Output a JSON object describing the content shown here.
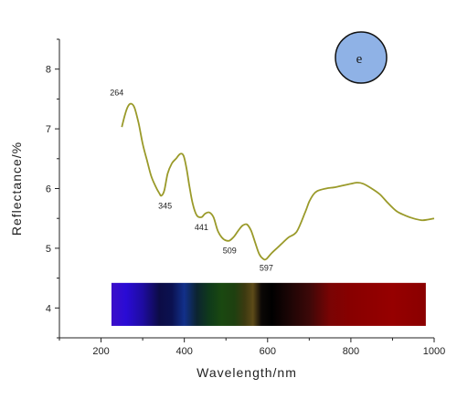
{
  "chart_data": {
    "type": "line",
    "title": "",
    "xlabel": "Wavelength/nm",
    "ylabel": "Reflectance/%",
    "xlim": [
      100,
      1000
    ],
    "ylim": [
      3.5,
      8.5
    ],
    "x_ticks": [
      200,
      400,
      600,
      800,
      1000
    ],
    "y_ticks": [
      4,
      5,
      6,
      7,
      8
    ],
    "grid": false,
    "line_color": "#9a9a2a",
    "series": [
      {
        "x": [
          250,
          258,
          265,
          272,
          280,
          290,
          300,
          310,
          320,
          330,
          340,
          345,
          352,
          360,
          370,
          380,
          390,
          398,
          405,
          412,
          420,
          430,
          441,
          450,
          460,
          470,
          480,
          490,
          500,
          509,
          520,
          530,
          540,
          550,
          560,
          570,
          580,
          590,
          597,
          610,
          630,
          650,
          670,
          690,
          700,
          710,
          720,
          740,
          760,
          780,
          800,
          815,
          830,
          850,
          870,
          890,
          910,
          930,
          950,
          970,
          985,
          1000
        ],
        "y": [
          7.03,
          7.25,
          7.38,
          7.42,
          7.36,
          7.1,
          6.75,
          6.48,
          6.22,
          6.05,
          5.92,
          5.88,
          5.97,
          6.25,
          6.42,
          6.5,
          6.58,
          6.55,
          6.35,
          6.05,
          5.75,
          5.55,
          5.52,
          5.58,
          5.6,
          5.52,
          5.3,
          5.18,
          5.13,
          5.13,
          5.2,
          5.3,
          5.38,
          5.4,
          5.3,
          5.1,
          4.9,
          4.82,
          4.82,
          4.92,
          5.05,
          5.18,
          5.28,
          5.6,
          5.78,
          5.9,
          5.96,
          6.0,
          6.02,
          6.05,
          6.08,
          6.1,
          6.08,
          6.0,
          5.9,
          5.75,
          5.62,
          5.55,
          5.5,
          5.47,
          5.48,
          5.5
        ]
      }
    ],
    "peak_labels": [
      {
        "text": "264",
        "x": 264,
        "y": 7.42
      },
      {
        "text": "345",
        "x": 345,
        "y": 5.88
      },
      {
        "text": "441",
        "x": 441,
        "y": 5.52
      },
      {
        "text": "509",
        "x": 509,
        "y": 5.13
      },
      {
        "text": "597",
        "x": 597,
        "y": 4.82
      }
    ],
    "spectrum_band": {
      "x_range": [
        225,
        980
      ],
      "y_range": [
        3.7,
        4.42
      ],
      "stops": [
        {
          "x": 225,
          "color": "#3c0ec8"
        },
        {
          "x": 260,
          "color": "#2a0bd5"
        },
        {
          "x": 300,
          "color": "#1e0ca0"
        },
        {
          "x": 340,
          "color": "#0c0c46"
        },
        {
          "x": 370,
          "color": "#0b1150"
        },
        {
          "x": 400,
          "color": "#12308a"
        },
        {
          "x": 430,
          "color": "#0c2430"
        },
        {
          "x": 460,
          "color": "#0f3a1a"
        },
        {
          "x": 490,
          "color": "#1a4810"
        },
        {
          "x": 520,
          "color": "#1e4010"
        },
        {
          "x": 545,
          "color": "#3c3a10"
        },
        {
          "x": 565,
          "color": "#5c4a18"
        },
        {
          "x": 585,
          "color": "#0c0806"
        },
        {
          "x": 610,
          "color": "#000000"
        },
        {
          "x": 650,
          "color": "#1a0505"
        },
        {
          "x": 700,
          "color": "#3c0808"
        },
        {
          "x": 750,
          "color": "#7a0404"
        },
        {
          "x": 800,
          "color": "#880000"
        },
        {
          "x": 900,
          "color": "#960000"
        },
        {
          "x": 980,
          "color": "#8a0000"
        }
      ]
    },
    "badge": {
      "text": "e",
      "fill": "#8fb2e6",
      "stroke": "#111111"
    }
  }
}
